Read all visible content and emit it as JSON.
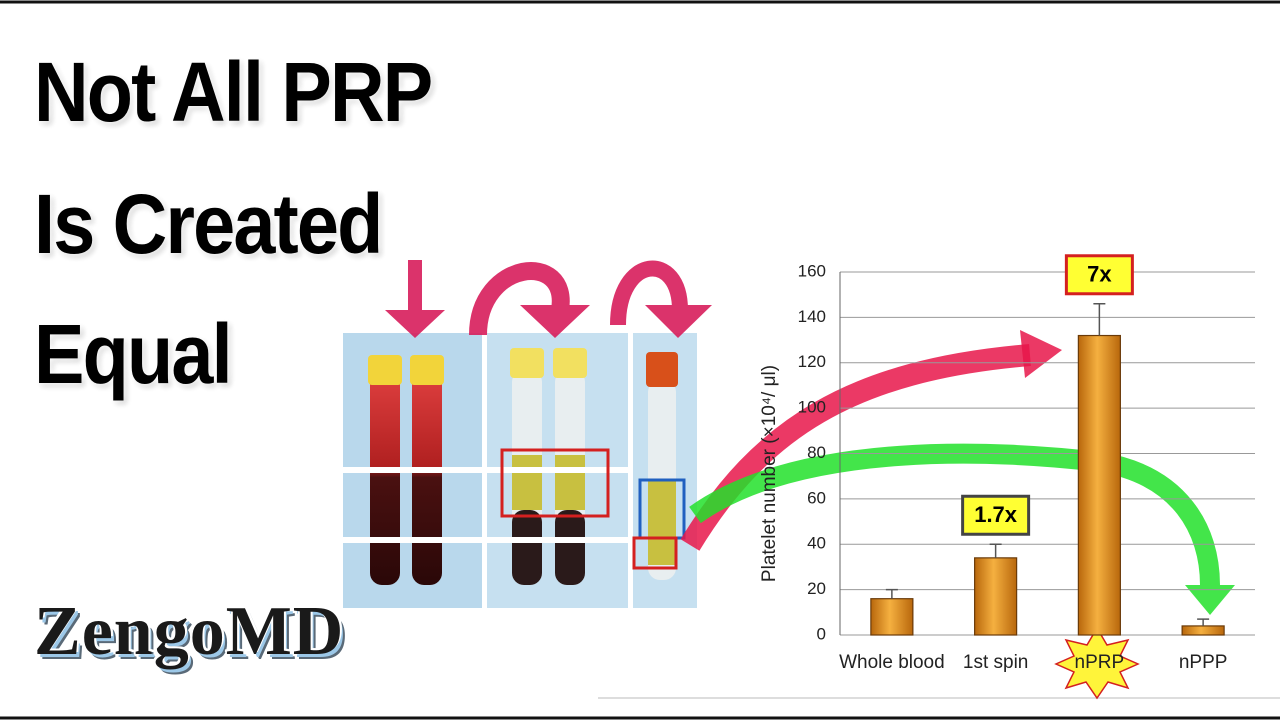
{
  "headline": [
    "Not All PRP",
    "Is Created",
    "Equal"
  ],
  "brand": "ZengoMD",
  "chart_data": {
    "type": "bar",
    "y_label": "Platelet number (×10⁴/ μl)",
    "categories": [
      "Whole blood",
      "1st spin",
      "nPRP",
      "nPPP"
    ],
    "values": [
      16,
      34,
      132,
      4
    ],
    "errors": [
      4,
      6,
      14,
      3
    ],
    "color": "#e8961e",
    "ylim": [
      0,
      160
    ],
    "yticks": [
      0,
      20,
      40,
      60,
      80,
      100,
      120,
      140,
      160
    ],
    "grid": true,
    "annotations": [
      "1.7x",
      "7x"
    ]
  }
}
